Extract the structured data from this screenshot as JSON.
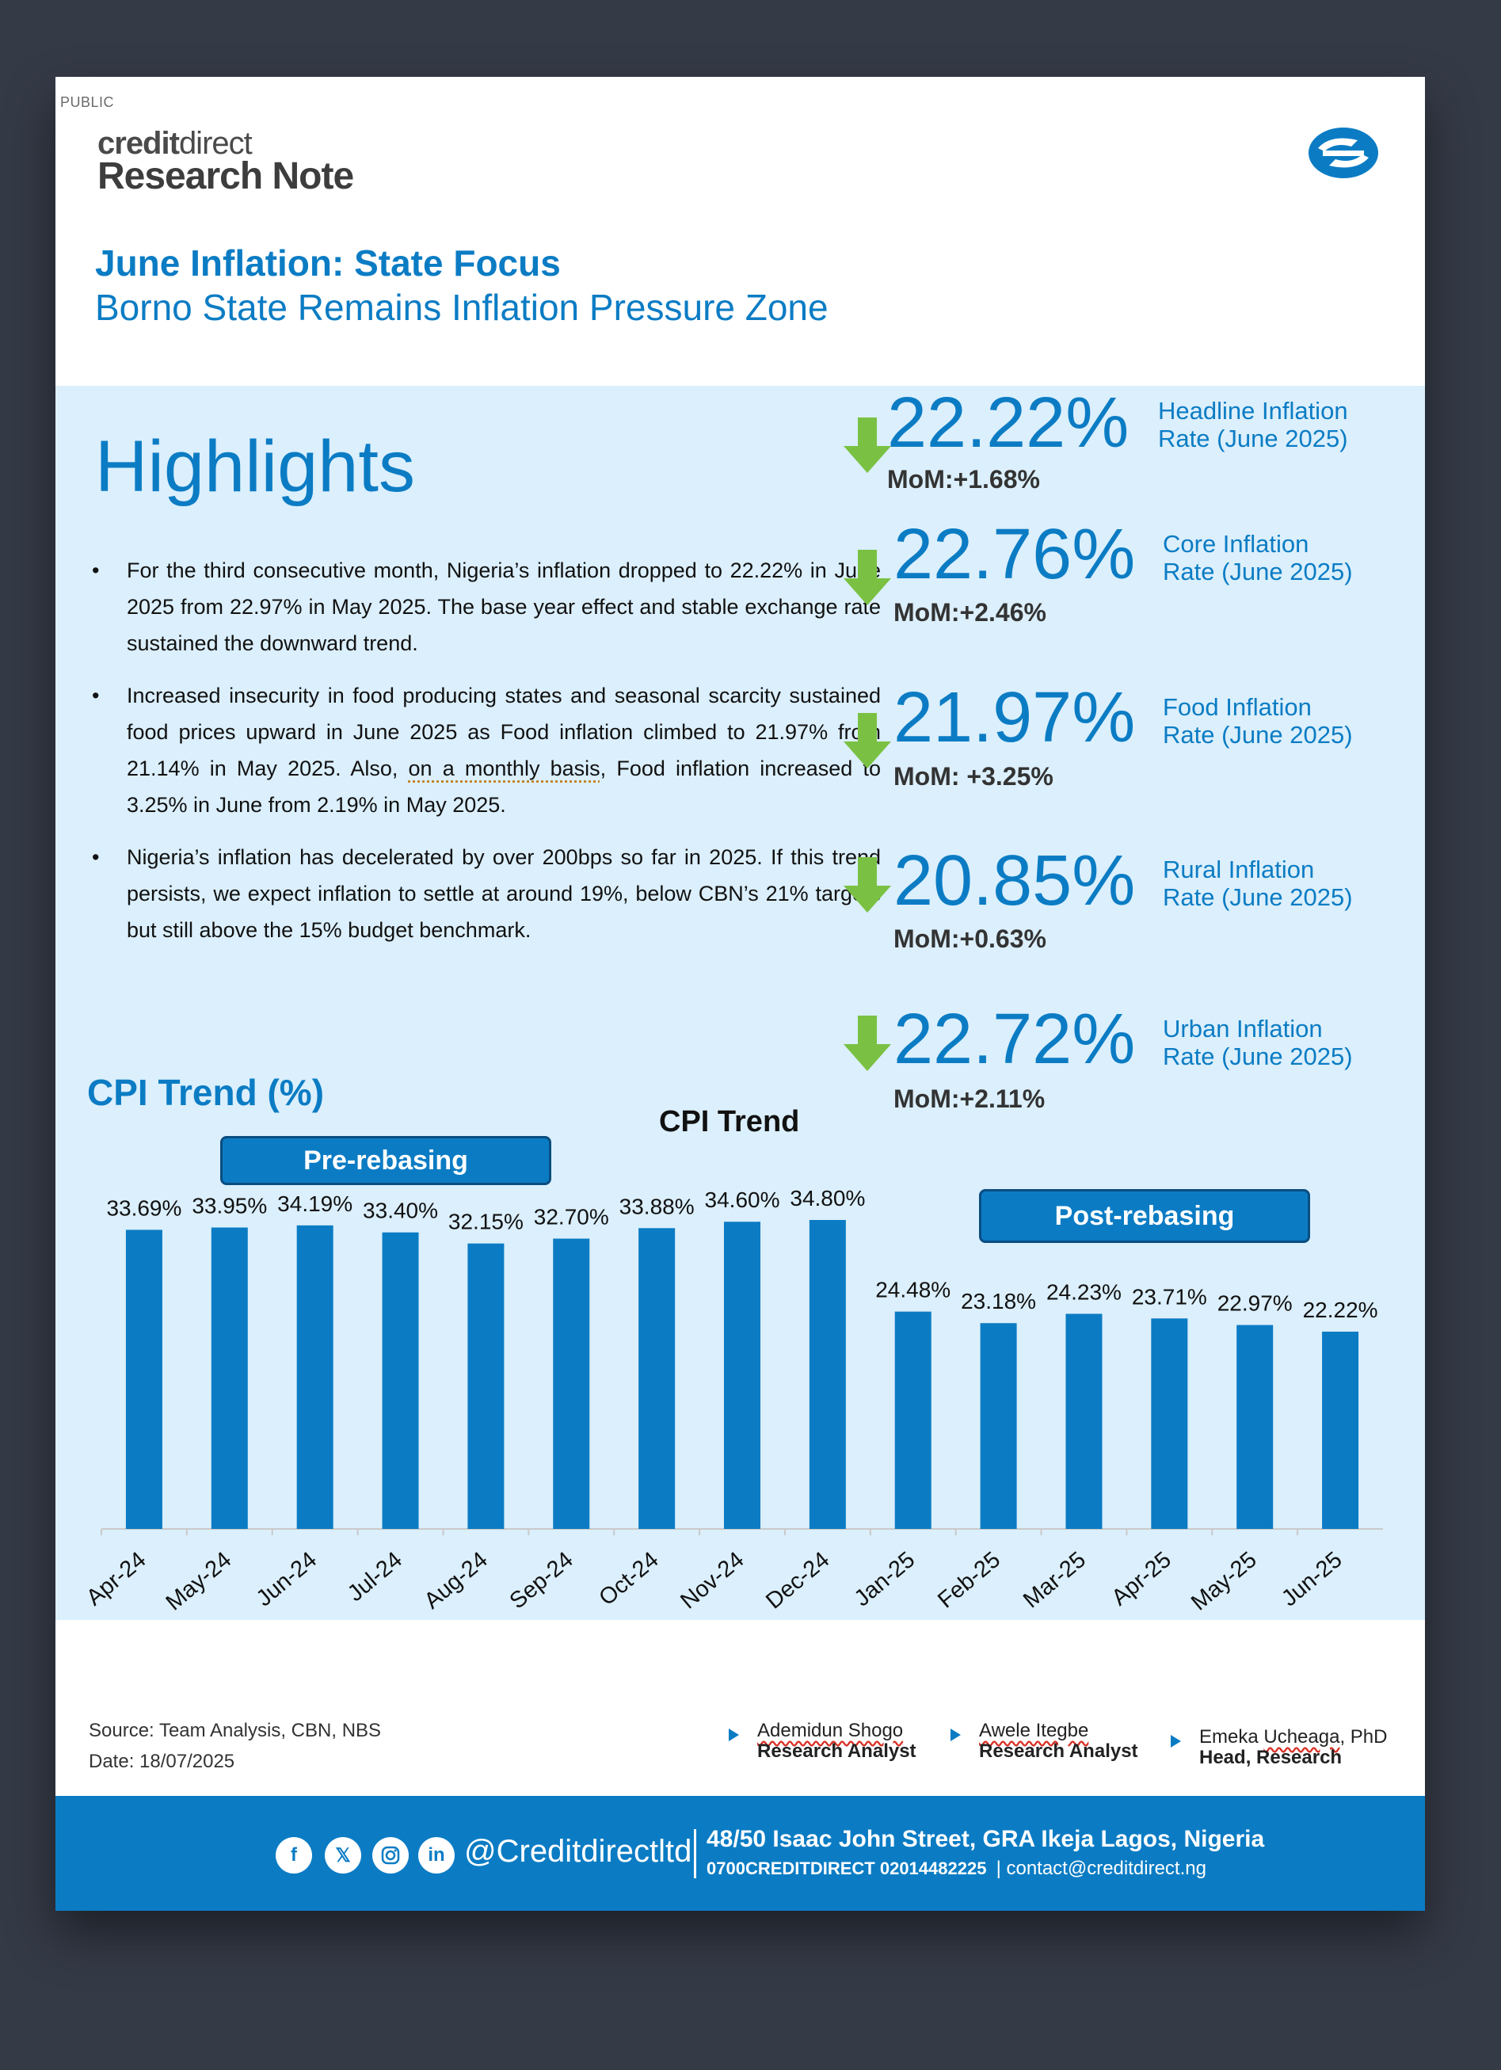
{
  "header": {
    "classification": "PUBLIC",
    "brand_credit": "credit",
    "brand_direct": "direct",
    "brand_title": "Research Note",
    "logo_icon": "creditdirect-logo-icon",
    "title": "June Inflation: State Focus",
    "subtitle": "Borno State Remains Inflation Pressure Zone"
  },
  "highlights": {
    "heading": "Highlights",
    "bullets": [
      "For the third consecutive month, Nigeria’s inflation dropped to 22.22% in June 2025 from 22.97% in May 2025. The base year effect and stable exchange rate sustained the downward trend.",
      "Nigeria’s inflation has decelerated by over 200bps so far in 2025. If this trend persists, we expect inflation to settle at around 19%, below CBN’s 21% targets but still above the 15% budget benchmark."
    ],
    "bullet2": {
      "part1": "Increased insecurity in food producing states and seasonal scarcity sustained food prices upward in June 2025 as Food inflation climbed to 21.97% from 21.14% in May 2025. Also, ",
      "underlined": "on a monthly basis",
      "part2": ", Food inflation increased to 3.25% in June from 2.19% in May 2025."
    }
  },
  "kpis": [
    {
      "value": "22.22%",
      "mom": "MoM:+1.68%",
      "label1": "Headline Inflation",
      "label2": "Rate (June 2025)",
      "icon": "down-arrow-icon"
    },
    {
      "value": "22.76%",
      "mom": "MoM:+2.46%",
      "label1": "Core Inflation",
      "label2": "Rate (June 2025)",
      "icon": "down-arrow-icon"
    },
    {
      "value": "21.97%",
      "mom": "MoM: +3.25%",
      "label1": "Food Inflation",
      "label2": "Rate (June 2025)",
      "icon": "down-arrow-icon"
    },
    {
      "value": "20.85%",
      "mom": "MoM:+0.63%",
      "label1": "Rural Inflation",
      "label2": "Rate (June 2025)",
      "icon": "down-arrow-icon"
    },
    {
      "value": "22.72%",
      "mom": "MoM:+2.11%",
      "label1": "Urban Inflation",
      "label2": "Rate (June 2025)",
      "icon": "down-arrow-icon"
    }
  ],
  "chart_section_title": "CPI Trend (%)",
  "chart_data": {
    "type": "bar",
    "title": "CPI Trend",
    "categories": [
      "Apr-24",
      "May-24",
      "Jun-24",
      "Jul-24",
      "Aug-24",
      "Sep-24",
      "Oct-24",
      "Nov-24",
      "Dec-24",
      "Jan-25",
      "Feb-25",
      "Mar-25",
      "Apr-25",
      "May-25",
      "Jun-25"
    ],
    "values": [
      33.69,
      33.95,
      34.19,
      33.4,
      32.15,
      32.7,
      33.88,
      34.6,
      34.8,
      24.48,
      23.18,
      24.23,
      23.71,
      22.97,
      22.22
    ],
    "data_labels": [
      "33.69%",
      "33.95%",
      "34.19%",
      "33.40%",
      "32.15%",
      "32.70%",
      "33.88%",
      "34.60%",
      "34.80%",
      "24.48%",
      "23.18%",
      "24.23%",
      "23.71%",
      "22.97%",
      "22.22%"
    ],
    "annotations": [
      "Pre-rebasing",
      "Post-rebasing"
    ],
    "bar_color": "#0b7cc4",
    "grid": false,
    "legend": "none",
    "ylim": [
      0,
      35
    ]
  },
  "footer": {
    "source": "Source: Team Analysis, CBN, NBS",
    "date": "Date: 18/07/2025",
    "analysts": [
      {
        "name": "Ademidun Shogo",
        "role": "Research Analyst"
      },
      {
        "name": "Awele Itegbe",
        "role": "Research Analyst"
      },
      {
        "name_prefix": "Emeka ",
        "name_flag": "Ucheaga",
        "name_suffix": ", PhD",
        "role": "Head, Research"
      }
    ],
    "social_icons": [
      "facebook-icon",
      "x-icon",
      "instagram-icon",
      "linkedin-icon"
    ],
    "handle": "@Creditdirectltd",
    "address": "48/50 Isaac John Street, GRA Ikeja Lagos, Nigeria",
    "phone1": "0700CREDITDIRECT",
    "phone2": "02014482225",
    "email": "| contact@creditdirect.ng",
    "brand_color": "#0b7cc4",
    "panel_color": "#dbeffc"
  }
}
